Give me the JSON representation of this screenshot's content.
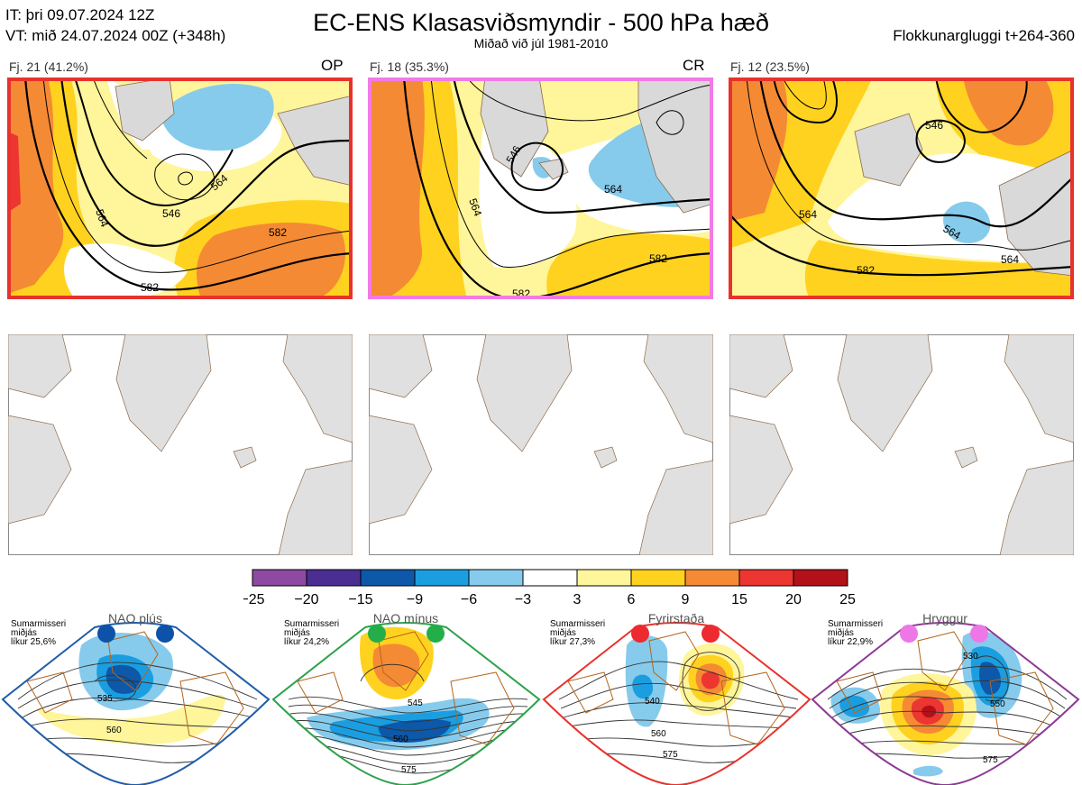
{
  "header": {
    "it": "IT: þri 09.07.2024 12Z",
    "vt": "VT: mið 24.07.2024 00Z  (+348h)",
    "title": "EC-ENS Klasasviðsmyndir - 500 hPa hæð",
    "subtitle": "Miðað við júl 1981-2010",
    "window": "Flokkunargluggi t+264-360"
  },
  "clusters": [
    {
      "label": "Fj. 21 (41.2%)",
      "tag": "OP",
      "border": "#e8322c",
      "contours": [
        "546",
        "564",
        "564",
        "582",
        "582"
      ]
    },
    {
      "label": "Fj. 18 (35.3%)",
      "tag": "CR",
      "border": "#f27ae6",
      "contours": [
        "546",
        "564",
        "564",
        "582",
        "582"
      ]
    },
    {
      "label": "Fj. 12 (23.5%)",
      "tag": "",
      "border": "#e8322c",
      "contours": [
        "546",
        "564",
        "564",
        "582",
        "564"
      ]
    }
  ],
  "colorbar": {
    "ticks": [
      "−25",
      "−20",
      "−15",
      "−9",
      "−6",
      "−3",
      "3",
      "6",
      "9",
      "15",
      "20",
      "25"
    ],
    "colors": [
      "#8e4aa0",
      "#4a2e92",
      "#0d58a8",
      "#1b9ee0",
      "#86cbec",
      "#ffffff",
      "#fff59a",
      "#ffd21f",
      "#f58a34",
      "#ed3531",
      "#b3111a"
    ]
  },
  "regimes": [
    {
      "name": "NAO plús",
      "season": "Sumarmisseri",
      "mean": "miðjás",
      "prob": "líkur 25,6%",
      "color": "#1f5da8",
      "dot": "#0d52a8",
      "contours": [
        "535",
        "560"
      ]
    },
    {
      "name": "NAO mínus",
      "season": "Sumarmisseri",
      "mean": "miðjás",
      "prob": "líkur 24,2%",
      "color": "#2ba24a",
      "dot": "#23ae4a",
      "contours": [
        "545",
        "560",
        "575"
      ]
    },
    {
      "name": "Fyrirstaða",
      "season": "Sumarmisseri",
      "mean": "miðjás",
      "prob": "líkur 27,3%",
      "color": "#e8322c",
      "dot": "#ed2a2f",
      "contours": [
        "540",
        "560",
        "575"
      ]
    },
    {
      "name": "Hryggur",
      "season": "Sumarmisseri",
      "mean": "miðjás",
      "prob": "líkur 22,9%",
      "color": "#8c3a93",
      "dot": "#ee77e8",
      "contours": [
        "530",
        "550",
        "575"
      ]
    }
  ]
}
